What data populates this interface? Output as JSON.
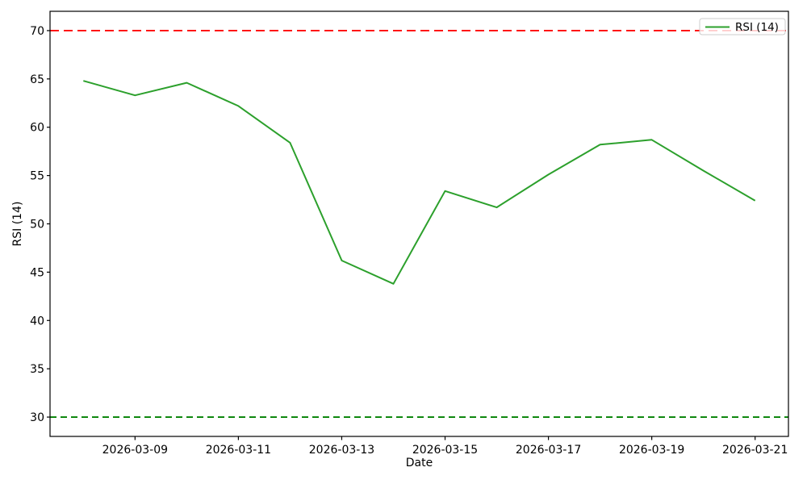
{
  "chart_data": {
    "type": "line",
    "title": "",
    "xlabel": "Date",
    "ylabel": "RSI (14)",
    "x": [
      "2026-03-08",
      "2026-03-09",
      "2026-03-10",
      "2026-03-11",
      "2026-03-12",
      "2026-03-13",
      "2026-03-14",
      "2026-03-15",
      "2026-03-16",
      "2026-03-17",
      "2026-03-18",
      "2026-03-19",
      "2026-03-20",
      "2026-03-21"
    ],
    "series": [
      {
        "name": "RSI (14)",
        "color": "#2ca02c",
        "line_width": 2,
        "values": [
          64.8,
          63.3,
          64.6,
          62.2,
          58.4,
          46.2,
          43.8,
          53.4,
          51.7,
          55.1,
          58.2,
          58.7,
          55.5,
          52.4
        ]
      }
    ],
    "overlays": [
      {
        "name": "overbought-line",
        "value": 70,
        "color": "#ff0000",
        "style": "dashed"
      },
      {
        "name": "oversold-line",
        "value": 30,
        "color": "#008000",
        "style": "dashed"
      }
    ],
    "y_ticks": [
      30,
      35,
      40,
      45,
      50,
      55,
      60,
      65,
      70
    ],
    "x_tick_indices": [
      1,
      3,
      5,
      7,
      9,
      11,
      13
    ],
    "x_tick_labels": [
      "2026-03-09",
      "2026-03-11",
      "2026-03-13",
      "2026-03-15",
      "2026-03-17",
      "2026-03-19",
      "2026-03-21"
    ],
    "ylim": [
      28,
      72
    ],
    "grid": false,
    "legend": {
      "position": "upper right",
      "entries": [
        "RSI (14)"
      ]
    },
    "colors": {
      "spine": "#000000",
      "text": "#000000",
      "legend_border": "#cccccc",
      "background": "#ffffff"
    }
  }
}
